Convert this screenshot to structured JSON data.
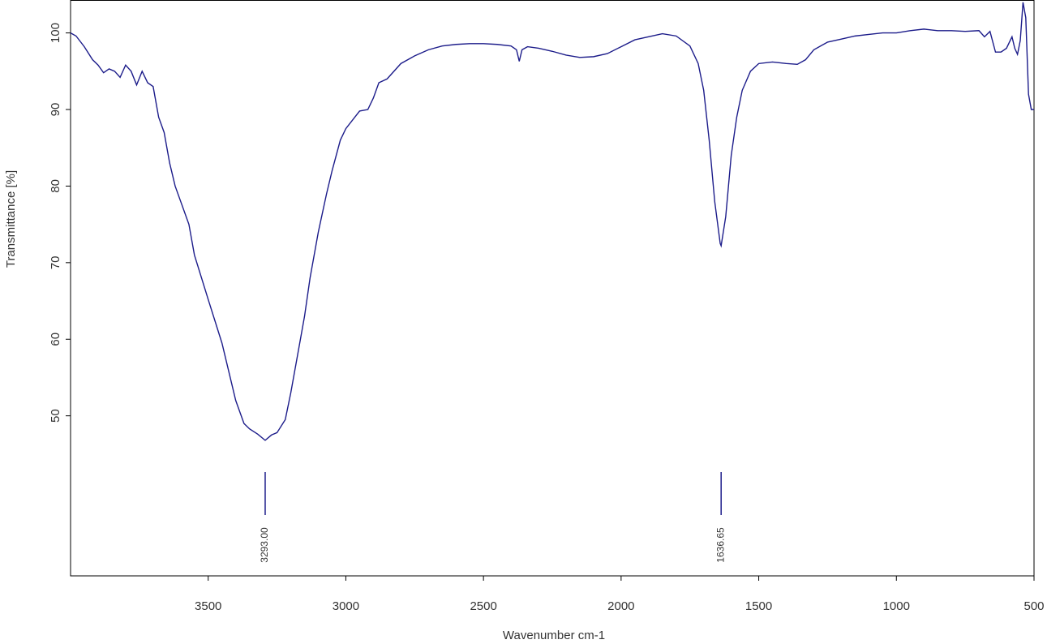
{
  "chart_data": {
    "type": "line",
    "x_label": "Wavenumber cm-1",
    "y_label": "Transmittance [%]",
    "color": "#1c1c8a",
    "xlim": [
      4000,
      500
    ],
    "ylim": [
      29.1,
      104.3
    ],
    "xticks": [
      3500,
      3000,
      2500,
      2000,
      1500,
      1000,
      500
    ],
    "yticks": [
      50,
      60,
      70,
      80,
      90,
      100
    ],
    "grid": false,
    "x": [
      4000,
      3980,
      3950,
      3920,
      3900,
      3880,
      3860,
      3840,
      3820,
      3800,
      3780,
      3760,
      3740,
      3720,
      3700,
      3680,
      3660,
      3640,
      3620,
      3600,
      3570,
      3550,
      3500,
      3450,
      3400,
      3370,
      3350,
      3320,
      3293,
      3270,
      3250,
      3220,
      3200,
      3170,
      3150,
      3130,
      3100,
      3070,
      3050,
      3020,
      3000,
      2950,
      2920,
      2900,
      2880,
      2850,
      2800,
      2750,
      2700,
      2650,
      2600,
      2550,
      2500,
      2450,
      2400,
      2380,
      2370,
      2360,
      2340,
      2300,
      2250,
      2200,
      2150,
      2100,
      2050,
      2000,
      1950,
      1900,
      1850,
      1800,
      1750,
      1720,
      1700,
      1680,
      1660,
      1640,
      1636.65,
      1620,
      1600,
      1580,
      1560,
      1530,
      1500,
      1450,
      1400,
      1360,
      1330,
      1300,
      1250,
      1200,
      1150,
      1100,
      1050,
      1000,
      950,
      900,
      850,
      800,
      750,
      700,
      680,
      660,
      640,
      620,
      600,
      580,
      570,
      560,
      550,
      540,
      530,
      520,
      510,
      500
    ],
    "values": [
      100,
      99.6,
      98.2,
      96.5,
      95.8,
      94.8,
      95.3,
      95.0,
      94.2,
      95.8,
      95.0,
      93.2,
      95.0,
      93.5,
      93.0,
      89,
      87,
      83,
      80,
      78,
      75,
      71,
      65.2,
      59.5,
      52,
      49.0,
      48.3,
      47.6,
      46.8,
      47.5,
      47.8,
      49.5,
      53,
      59,
      63,
      68,
      74,
      79,
      82,
      86,
      87.5,
      89.8,
      90.0,
      91.5,
      93.5,
      94.0,
      96.0,
      97.0,
      97.8,
      98.3,
      98.5,
      98.6,
      98.6,
      98.5,
      98.3,
      97.8,
      96.3,
      97.8,
      98.2,
      98.0,
      97.6,
      97.1,
      96.8,
      96.9,
      97.3,
      98.2,
      99.1,
      99.5,
      99.9,
      99.6,
      98.3,
      96.0,
      92.5,
      86,
      78,
      72.5,
      72.2,
      76,
      84,
      89,
      92.5,
      95,
      96.0,
      96.2,
      96.0,
      95.9,
      96.5,
      97.8,
      98.8,
      99.2,
      99.6,
      99.8,
      100.0,
      100.0,
      100.3,
      100.5,
      100.3,
      100.3,
      100.2,
      100.3,
      99.5,
      100.2,
      97.5,
      97.5,
      98.0,
      99.5,
      98.0,
      97.2,
      99.0,
      104,
      102,
      92,
      90,
      90
    ],
    "peaks": [
      {
        "x": 3293,
        "label": "3293.00"
      },
      {
        "x": 1636.65,
        "label": "1636.65"
      }
    ]
  }
}
